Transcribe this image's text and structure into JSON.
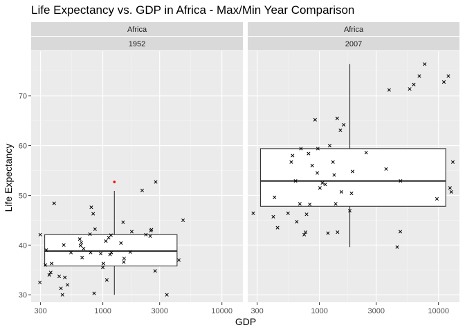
{
  "chart_data": {
    "type": "scatter",
    "title": "Life Expectancy vs. GDP in Africa - Max/Min Year Comparison",
    "xlabel": "GDP",
    "ylabel": "Life Expectancy",
    "x_scale": "log10",
    "xlim": [
      250,
      15000
    ],
    "ylim": [
      28.5,
      79
    ],
    "x_ticks": [
      300,
      1000,
      3000,
      10000
    ],
    "x_tick_labels": [
      "300",
      "1000",
      "3000",
      "10000"
    ],
    "y_ticks": [
      30,
      40,
      50,
      60,
      70
    ],
    "y_tick_labels": [
      "30",
      "40",
      "50",
      "60",
      "70"
    ],
    "grid": true,
    "colors": {
      "panel": "#ebebeb",
      "strip": "#d9d9d9",
      "grid_major": "#ffffff",
      "outlier": "#ff0000",
      "point": "#000000"
    },
    "facets": [
      {
        "continent": "Africa",
        "year": "1952",
        "box": {
          "x_center": 1250,
          "lower_whisker": 30.0,
          "q1": 35.8,
          "median": 38.8,
          "q3": 42.1,
          "upper_whisker": 50.9,
          "x_min": 325,
          "x_max": 4200
        },
        "outliers": [
          {
            "x": 1250,
            "y": 52.7
          }
        ],
        "points": [
          {
            "x": 298,
            "y": 42.1
          },
          {
            "x": 296,
            "y": 32.5
          },
          {
            "x": 330,
            "y": 36.0
          },
          {
            "x": 335,
            "y": 39.0
          },
          {
            "x": 355,
            "y": 34.0
          },
          {
            "x": 365,
            "y": 34.5
          },
          {
            "x": 372,
            "y": 36.3
          },
          {
            "x": 390,
            "y": 48.4
          },
          {
            "x": 430,
            "y": 33.7
          },
          {
            "x": 445,
            "y": 31.3
          },
          {
            "x": 458,
            "y": 30.0
          },
          {
            "x": 470,
            "y": 40.0
          },
          {
            "x": 480,
            "y": 33.5
          },
          {
            "x": 505,
            "y": 32.0
          },
          {
            "x": 540,
            "y": 38.5
          },
          {
            "x": 640,
            "y": 41.2
          },
          {
            "x": 650,
            "y": 39.9
          },
          {
            "x": 660,
            "y": 40.5
          },
          {
            "x": 670,
            "y": 37.5
          },
          {
            "x": 690,
            "y": 39.3
          },
          {
            "x": 780,
            "y": 42.2
          },
          {
            "x": 790,
            "y": 38.5
          },
          {
            "x": 800,
            "y": 47.6
          },
          {
            "x": 830,
            "y": 46.3
          },
          {
            "x": 845,
            "y": 30.3
          },
          {
            "x": 860,
            "y": 43.2
          },
          {
            "x": 960,
            "y": 38.3
          },
          {
            "x": 1000,
            "y": 35.5
          },
          {
            "x": 1010,
            "y": 36.3
          },
          {
            "x": 1060,
            "y": 40.8
          },
          {
            "x": 1080,
            "y": 33.0
          },
          {
            "x": 1120,
            "y": 41.5
          },
          {
            "x": 1150,
            "y": 38.1
          },
          {
            "x": 1170,
            "y": 42.0
          },
          {
            "x": 1180,
            "y": 38.5
          },
          {
            "x": 1420,
            "y": 40.4
          },
          {
            "x": 1480,
            "y": 44.6
          },
          {
            "x": 1500,
            "y": 36.6
          },
          {
            "x": 1510,
            "y": 37.3
          },
          {
            "x": 1700,
            "y": 38.6
          },
          {
            "x": 1750,
            "y": 42.7
          },
          {
            "x": 2140,
            "y": 51.0
          },
          {
            "x": 2300,
            "y": 42.1
          },
          {
            "x": 2500,
            "y": 41.8
          },
          {
            "x": 2530,
            "y": 42.9
          },
          {
            "x": 2560,
            "y": 43.1
          },
          {
            "x": 2750,
            "y": 34.8
          },
          {
            "x": 2780,
            "y": 52.7
          },
          {
            "x": 3450,
            "y": 30.0
          },
          {
            "x": 4350,
            "y": 37.0
          },
          {
            "x": 4720,
            "y": 45.0
          }
        ]
      },
      {
        "continent": "Africa",
        "year": "2007",
        "box": {
          "x_center": 1800,
          "lower_whisker": 39.6,
          "q1": 47.8,
          "median": 52.9,
          "q3": 59.4,
          "upper_whisker": 76.4,
          "x_min": 320,
          "x_max": 11500
        },
        "outliers": [],
        "points": [
          {
            "x": 278,
            "y": 46.4
          },
          {
            "x": 410,
            "y": 45.7
          },
          {
            "x": 420,
            "y": 49.6
          },
          {
            "x": 445,
            "y": 43.5
          },
          {
            "x": 545,
            "y": 46.4
          },
          {
            "x": 580,
            "y": 56.7
          },
          {
            "x": 595,
            "y": 58.0
          },
          {
            "x": 630,
            "y": 52.9
          },
          {
            "x": 645,
            "y": 44.7
          },
          {
            "x": 685,
            "y": 48.3
          },
          {
            "x": 700,
            "y": 59.4
          },
          {
            "x": 745,
            "y": 42.1
          },
          {
            "x": 765,
            "y": 42.6
          },
          {
            "x": 780,
            "y": 46.2
          },
          {
            "x": 810,
            "y": 58.4
          },
          {
            "x": 830,
            "y": 48.2
          },
          {
            "x": 870,
            "y": 56.0
          },
          {
            "x": 920,
            "y": 65.2
          },
          {
            "x": 960,
            "y": 54.5
          },
          {
            "x": 970,
            "y": 59.4
          },
          {
            "x": 1010,
            "y": 51.5
          },
          {
            "x": 1060,
            "y": 52.5
          },
          {
            "x": 1120,
            "y": 52.2
          },
          {
            "x": 1180,
            "y": 42.4
          },
          {
            "x": 1220,
            "y": 60.0
          },
          {
            "x": 1300,
            "y": 56.7
          },
          {
            "x": 1330,
            "y": 54.1
          },
          {
            "x": 1370,
            "y": 48.3
          },
          {
            "x": 1410,
            "y": 65.5
          },
          {
            "x": 1420,
            "y": 42.6
          },
          {
            "x": 1500,
            "y": 63.1
          },
          {
            "x": 1530,
            "y": 50.7
          },
          {
            "x": 1600,
            "y": 64.2
          },
          {
            "x": 1800,
            "y": 46.9
          },
          {
            "x": 1860,
            "y": 50.4
          },
          {
            "x": 1900,
            "y": 54.8
          },
          {
            "x": 2470,
            "y": 58.6
          },
          {
            "x": 3630,
            "y": 55.3
          },
          {
            "x": 3850,
            "y": 71.2
          },
          {
            "x": 4500,
            "y": 39.6
          },
          {
            "x": 4780,
            "y": 42.7
          },
          {
            "x": 4800,
            "y": 52.9
          },
          {
            "x": 5730,
            "y": 71.4
          },
          {
            "x": 6200,
            "y": 72.3
          },
          {
            "x": 6900,
            "y": 74.0
          },
          {
            "x": 7660,
            "y": 76.4
          },
          {
            "x": 9700,
            "y": 49.3
          },
          {
            "x": 11100,
            "y": 72.8
          },
          {
            "x": 12100,
            "y": 74.0
          },
          {
            "x": 12500,
            "y": 51.5
          },
          {
            "x": 12800,
            "y": 50.7
          },
          {
            "x": 13200,
            "y": 56.7
          }
        ]
      }
    ]
  }
}
